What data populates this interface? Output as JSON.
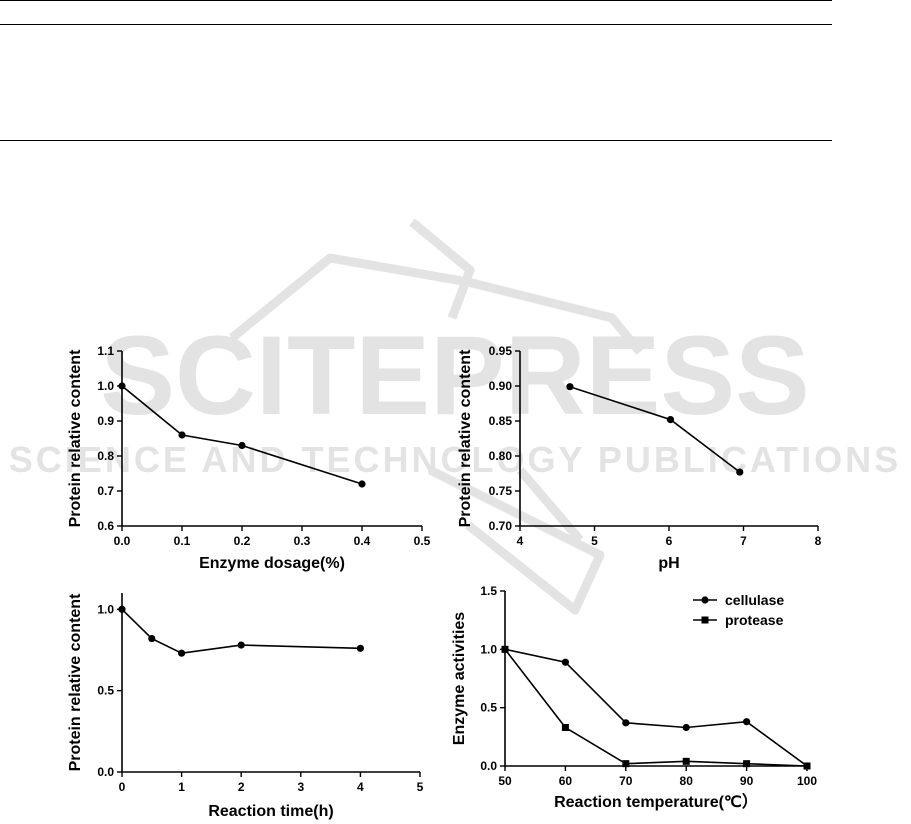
{
  "watermark": {
    "title": "SCITEPRESS",
    "subtitle": "SCIENCE AND TECHNOLOGY PUBLICATIONS",
    "color": "#e3e3e3"
  },
  "chart_data": [
    {
      "id": "enzyme-dosage",
      "type": "line",
      "xlabel": "Enzyme dosage(%)",
      "ylabel": "Protein relative content",
      "xlim": [
        0.0,
        0.5
      ],
      "ylim": [
        0.6,
        1.1
      ],
      "xticks": [
        "0.0",
        "0.1",
        "0.2",
        "0.3",
        "0.4",
        "0.5"
      ],
      "yticks": [
        "0.6",
        "0.7",
        "0.8",
        "0.9",
        "1.0",
        "1.1"
      ],
      "series": [
        {
          "name": "",
          "marker": "circle",
          "x": [
            0.0,
            0.1,
            0.2,
            0.4
          ],
          "y": [
            1.0,
            0.86,
            0.83,
            0.72
          ]
        }
      ]
    },
    {
      "id": "ph",
      "type": "line",
      "xlabel": "pH",
      "ylabel": "Protein relative content",
      "xlim": [
        4,
        8
      ],
      "ylim": [
        0.7,
        0.95
      ],
      "xticks": [
        "4",
        "5",
        "6",
        "7",
        "8"
      ],
      "yticks": [
        "0.70",
        "0.75",
        "0.80",
        "0.85",
        "0.90",
        "0.95"
      ],
      "series": [
        {
          "name": "",
          "marker": "circle",
          "x": [
            4.67,
            6.02,
            6.95
          ],
          "y": [
            0.899,
            0.852,
            0.777
          ]
        }
      ]
    },
    {
      "id": "reaction-time",
      "type": "line",
      "xlabel": "Reaction time(h)",
      "ylabel": "Protein relative content",
      "xlim": [
        0,
        5
      ],
      "ylim": [
        0.0,
        1.1
      ],
      "xticks": [
        "0",
        "1",
        "2",
        "3",
        "4",
        "5"
      ],
      "yticks": [
        "0.0",
        "0.5",
        "1.0"
      ],
      "ytick_values": [
        0.0,
        0.5,
        1.0
      ],
      "series": [
        {
          "name": "",
          "marker": "circle",
          "x": [
            0,
            0.5,
            1,
            2,
            4
          ],
          "y": [
            1.0,
            0.82,
            0.73,
            0.78,
            0.76
          ]
        }
      ]
    },
    {
      "id": "reaction-temperature",
      "type": "line",
      "xlabel": "Reaction temperature(℃）",
      "ylabel": "Enzyme activities",
      "xlim": [
        50,
        100
      ],
      "ylim": [
        0.0,
        1.5
      ],
      "xticks": [
        "50",
        "60",
        "70",
        "80",
        "90",
        "100"
      ],
      "yticks": [
        "0.0",
        "0.5",
        "1.0",
        "1.5"
      ],
      "legend_position": "top-right",
      "series": [
        {
          "name": "cellulase",
          "marker": "circle",
          "x": [
            50,
            60,
            70,
            80,
            90,
            100
          ],
          "y": [
            1.0,
            0.89,
            0.37,
            0.33,
            0.38,
            0.0
          ]
        },
        {
          "name": "protease",
          "marker": "square",
          "x": [
            50,
            60,
            70,
            80,
            90,
            100
          ],
          "y": [
            1.0,
            0.33,
            0.02,
            0.04,
            0.02,
            0.0
          ]
        }
      ]
    }
  ]
}
